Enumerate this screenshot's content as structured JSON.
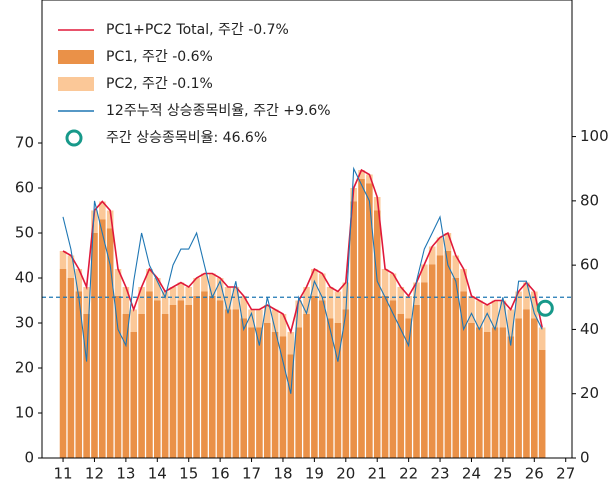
{
  "chart_data": {
    "type": "bar",
    "x": [
      11,
      11.25,
      11.5,
      11.75,
      12,
      12.25,
      12.5,
      12.75,
      13,
      13.25,
      13.5,
      13.75,
      14,
      14.25,
      14.5,
      14.75,
      15,
      15.25,
      15.5,
      15.75,
      16,
      16.25,
      16.5,
      16.75,
      17,
      17.25,
      17.5,
      17.75,
      18,
      18.25,
      18.5,
      18.75,
      19,
      19.25,
      19.5,
      19.75,
      20,
      20.25,
      20.5,
      20.75,
      21,
      21.25,
      21.5,
      21.75,
      22,
      22.25,
      22.5,
      22.75,
      23,
      23.25,
      23.5,
      23.75,
      24,
      24.25,
      24.5,
      24.75,
      25,
      25.25,
      25.5,
      25.75,
      26,
      26.25
    ],
    "series": [
      {
        "name": "PC1+PC2 Total, 주간 -0.7%",
        "type": "line",
        "color": "#e0193a",
        "values": [
          46,
          45,
          42,
          38,
          55,
          57,
          55,
          42,
          38,
          33,
          38,
          42,
          40,
          37,
          38,
          39,
          38,
          40,
          41,
          41,
          40,
          38,
          38,
          36,
          33,
          33,
          34,
          33,
          32,
          28,
          35,
          38,
          42,
          41,
          38,
          37,
          39,
          60,
          64,
          63,
          58,
          42,
          41,
          38,
          36,
          39,
          43,
          47,
          49,
          50,
          45,
          42,
          36,
          35,
          34,
          35,
          35,
          33,
          37,
          39,
          37,
          29
        ]
      },
      {
        "name": "PC1, 주간 -0.6%",
        "type": "bar",
        "color": "#ea9148",
        "values": [
          42,
          40,
          37,
          32,
          50,
          53,
          51,
          36,
          32,
          28,
          32,
          37,
          35,
          32,
          34,
          35,
          34,
          36,
          37,
          36,
          35,
          33,
          33,
          31,
          29,
          29,
          30,
          28,
          27,
          23,
          29,
          32,
          36,
          35,
          31,
          30,
          33,
          57,
          62,
          61,
          55,
          36,
          35,
          32,
          31,
          34,
          39,
          43,
          45,
          46,
          40,
          37,
          30,
          29,
          28,
          29,
          29,
          27,
          31,
          33,
          31,
          24
        ]
      },
      {
        "name": "PC2, 주간 -0.1%",
        "type": "bar",
        "color": "#fbc898",
        "values": [
          4,
          5,
          5,
          6,
          5,
          4,
          4,
          6,
          6,
          5,
          6,
          5,
          5,
          5,
          4,
          4,
          4,
          4,
          4,
          5,
          5,
          5,
          5,
          5,
          4,
          4,
          4,
          5,
          5,
          5,
          6,
          6,
          6,
          6,
          7,
          7,
          6,
          3,
          2,
          2,
          3,
          6,
          6,
          6,
          5,
          5,
          4,
          4,
          4,
          4,
          5,
          5,
          6,
          6,
          6,
          6,
          6,
          6,
          6,
          6,
          6,
          5
        ]
      },
      {
        "name": "12주누적 상승종목비율, 주간 +9.6%",
        "type": "line",
        "axis": "y2",
        "color": "#1f77b4",
        "values": [
          75,
          65,
          50,
          30,
          80,
          70,
          60,
          40,
          35,
          55,
          70,
          60,
          55,
          50,
          60,
          65,
          65,
          70,
          60,
          50,
          55,
          45,
          55,
          40,
          45,
          35,
          50,
          40,
          30,
          20,
          50,
          45,
          55,
          50,
          40,
          30,
          45,
          90,
          85,
          80,
          55,
          50,
          45,
          40,
          35,
          55,
          65,
          70,
          75,
          60,
          55,
          40,
          45,
          40,
          45,
          40,
          50,
          35,
          55,
          55,
          45,
          40
        ]
      }
    ],
    "marker": {
      "name": "주간 상승종목비율: 46.6%",
      "x": 26.35,
      "value": 46.6,
      "axis": "y2",
      "color": "#17998a"
    },
    "reference_line": {
      "value": 50,
      "axis": "y2",
      "color": "#1f77b4"
    },
    "xlim": [
      10.33,
      27.2
    ],
    "xticks": [
      11,
      12,
      13,
      14,
      15,
      16,
      17,
      18,
      19,
      20,
      21,
      22,
      23,
      24,
      25,
      26,
      27
    ],
    "ylim": [
      0,
      100
    ],
    "yticks": [
      0,
      10,
      20,
      30,
      40,
      50,
      60,
      70
    ],
    "y2lim": [
      0,
      140
    ],
    "y2ticks": [
      0,
      20,
      40,
      60,
      80,
      100
    ]
  }
}
